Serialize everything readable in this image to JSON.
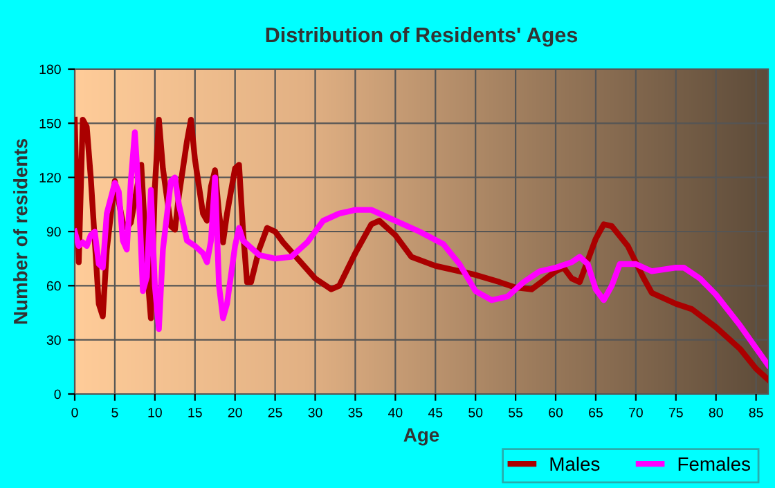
{
  "chart_data": {
    "type": "line",
    "title": "Distribution of Residents' Ages",
    "xlabel": "Age",
    "ylabel": "Number of residents",
    "xlim": [
      0,
      86.5
    ],
    "xticks": [
      0,
      5,
      10,
      15,
      20,
      25,
      30,
      35,
      40,
      45,
      50,
      55,
      60,
      65,
      70,
      75,
      80,
      85
    ],
    "ylim": [
      0,
      180
    ],
    "yticks": [
      0,
      30,
      60,
      90,
      120,
      150,
      180
    ],
    "grid": true,
    "legend": "bottom right",
    "series": [
      {
        "name": "Males",
        "color": "#aa0000",
        "x": [
          0,
          0.5,
          1,
          1.5,
          2,
          3,
          3.5,
          4,
          5,
          6,
          6.5,
          7,
          8,
          8.3,
          9,
          9.5,
          10,
          10.5,
          11,
          12,
          12.5,
          13,
          14,
          14.5,
          15,
          16,
          16.5,
          17,
          17.5,
          18,
          18.5,
          19,
          20,
          20.5,
          21,
          21.5,
          22,
          23,
          24,
          25,
          26,
          28,
          30,
          32,
          33,
          35,
          37,
          38,
          40,
          42,
          45,
          50,
          53,
          55,
          57,
          60,
          61,
          62,
          63,
          65,
          66,
          67,
          69,
          71,
          72,
          75,
          77,
          80,
          83,
          85,
          86.5
        ],
        "values": [
          152,
          73,
          152,
          148,
          120,
          50,
          43,
          80,
          118,
          95,
          92,
          95,
          120,
          127,
          70,
          42,
          115,
          152,
          125,
          93,
          91,
          110,
          140,
          152,
          130,
          100,
          96,
          115,
          124,
          100,
          84,
          100,
          125,
          127,
          90,
          62,
          62,
          80,
          92,
          90,
          84,
          74,
          64,
          58,
          60,
          78,
          94,
          96,
          88,
          76,
          71,
          66,
          62,
          59,
          58,
          68,
          70,
          64,
          62,
          86,
          94,
          93,
          82,
          64,
          56,
          50,
          47,
          37,
          25,
          14,
          8
        ]
      },
      {
        "name": "Females",
        "color": "#ff00ff",
        "x": [
          0,
          0.5,
          1,
          1.5,
          2,
          2.5,
          3,
          3.5,
          4,
          5,
          5.5,
          6,
          6.5,
          7,
          7.5,
          8,
          8.5,
          9,
          9.5,
          10,
          10.5,
          11,
          12,
          12.5,
          13,
          14,
          15,
          16,
          16.5,
          17,
          17.5,
          18,
          18.5,
          19,
          20,
          20.5,
          21,
          23,
          25,
          27,
          29,
          31,
          33,
          35,
          37,
          40,
          43,
          46,
          48,
          50,
          52,
          54,
          56,
          58,
          60,
          62,
          63,
          64,
          65,
          66,
          67,
          68,
          70,
          72,
          75,
          76,
          78,
          80,
          83,
          86.5
        ],
        "values": [
          90,
          82,
          84,
          82,
          88,
          90,
          72,
          70,
          100,
          117,
          112,
          85,
          80,
          118,
          145,
          110,
          57,
          65,
          113,
          60,
          36,
          80,
          118,
          120,
          105,
          85,
          82,
          78,
          73,
          85,
          120,
          60,
          42,
          50,
          82,
          92,
          85,
          77,
          75,
          76,
          84,
          96,
          100,
          102,
          102,
          96,
          90,
          83,
          72,
          57,
          52,
          54,
          62,
          68,
          70,
          73,
          76,
          72,
          58,
          52,
          60,
          72,
          72,
          68,
          70,
          70,
          64,
          55,
          38,
          16
        ]
      }
    ]
  }
}
